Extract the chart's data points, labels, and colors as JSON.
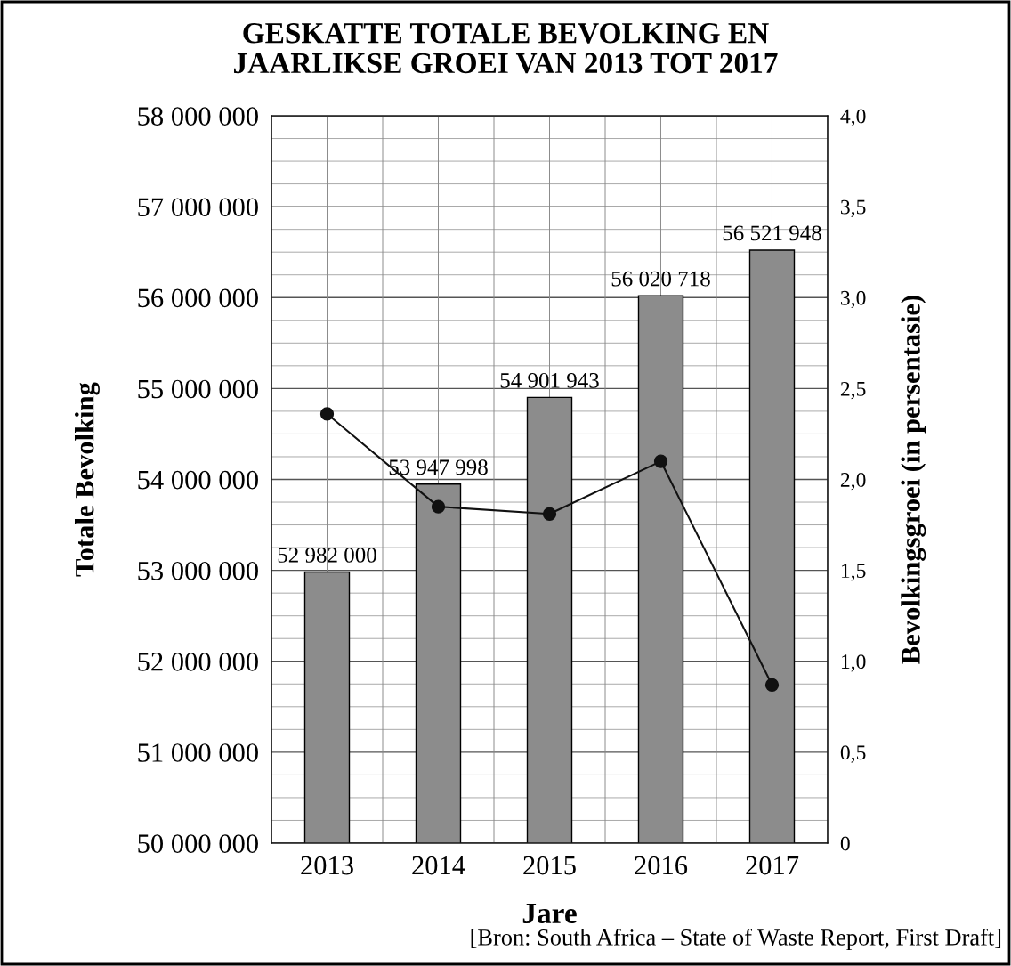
{
  "chart_data": {
    "type": "bar",
    "title": "GESKATTE TOTALE BEVOLKING EN\nJAARLIKSE GROEI VAN 2013 TOT 2017",
    "xlabel": "Jare",
    "ylabel": "Totale Bevolking",
    "y2label": "Bevolkingsgroei (in persentasie)",
    "categories": [
      "2013",
      "2014",
      "2015",
      "2016",
      "2017"
    ],
    "series": [
      {
        "color": "#8c8c8c",
        "values": [
          52982000,
          53947998,
          54901943,
          56020718,
          56521948
        ],
        "value_labels": [
          "52 982 000",
          "53 947 998",
          "54 901 943",
          "56 020 718",
          "56 521 948"
        ]
      },
      {
        "type": "line",
        "axis": "y2",
        "color": "#111111",
        "marker": "circle",
        "line_style": "solid",
        "values": [
          2.36,
          1.85,
          1.81,
          2.1,
          0.87
        ]
      }
    ],
    "ylim": [
      50000000,
      58000000
    ],
    "yticks": [
      {
        "value": 50000000,
        "label": "50 000 000"
      },
      {
        "value": 51000000,
        "label": "51 000 000"
      },
      {
        "value": 52000000,
        "label": "52 000 000"
      },
      {
        "value": 53000000,
        "label": "53 000 000"
      },
      {
        "value": 54000000,
        "label": "54 000 000"
      },
      {
        "value": 55000000,
        "label": "55 000 000"
      },
      {
        "value": 56000000,
        "label": "56 000 000"
      },
      {
        "value": 57000000,
        "label": "57 000 000"
      },
      {
        "value": 58000000,
        "label": "58 000 000"
      }
    ],
    "y2lim": [
      0,
      4.0
    ],
    "y2ticks": [
      0,
      {
        "value": 0.5,
        "label": "0,5"
      },
      {
        "value": 1.0,
        "label": "1,0"
      },
      {
        "value": 1.5,
        "label": "1,5"
      },
      {
        "value": 2.0,
        "label": "2,0"
      },
      {
        "value": 2.5,
        "label": "2,5"
      },
      {
        "value": 3.0,
        "label": "3,0"
      },
      {
        "value": 3.5,
        "label": "3,5"
      },
      {
        "value": 4.0,
        "label": "4,0"
      }
    ],
    "grid": true,
    "annotations": [
      "[Bron: South Africa – State of Waste Report, First Draft]"
    ]
  }
}
